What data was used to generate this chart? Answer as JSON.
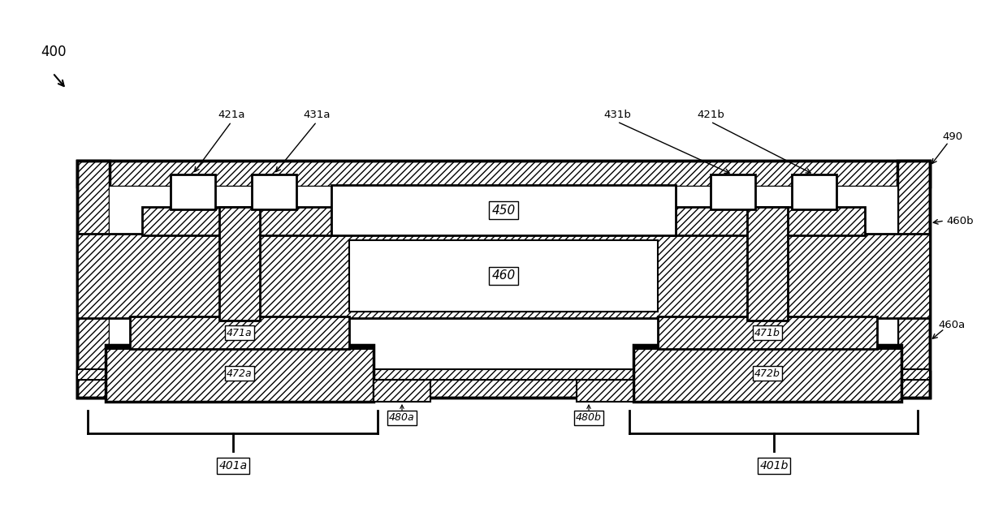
{
  "bg_color": "#ffffff",
  "fig_label": "400",
  "outer_box_label": "490",
  "center_block_label": "460",
  "top_center_label": "450",
  "left_lower_a_label": "471a",
  "left_lower_b_label": "472a",
  "right_lower_a_label": "471b",
  "right_lower_b_label": "472b",
  "connector_left_label": "480a",
  "connector_right_label": "480b",
  "label_460a": "460a",
  "label_460b": "460b",
  "bracket_left_label": "401a",
  "bracket_right_label": "401b",
  "tag_421a": "421a",
  "tag_431a": "431a",
  "tag_431b": "431b",
  "tag_421b": "421b"
}
